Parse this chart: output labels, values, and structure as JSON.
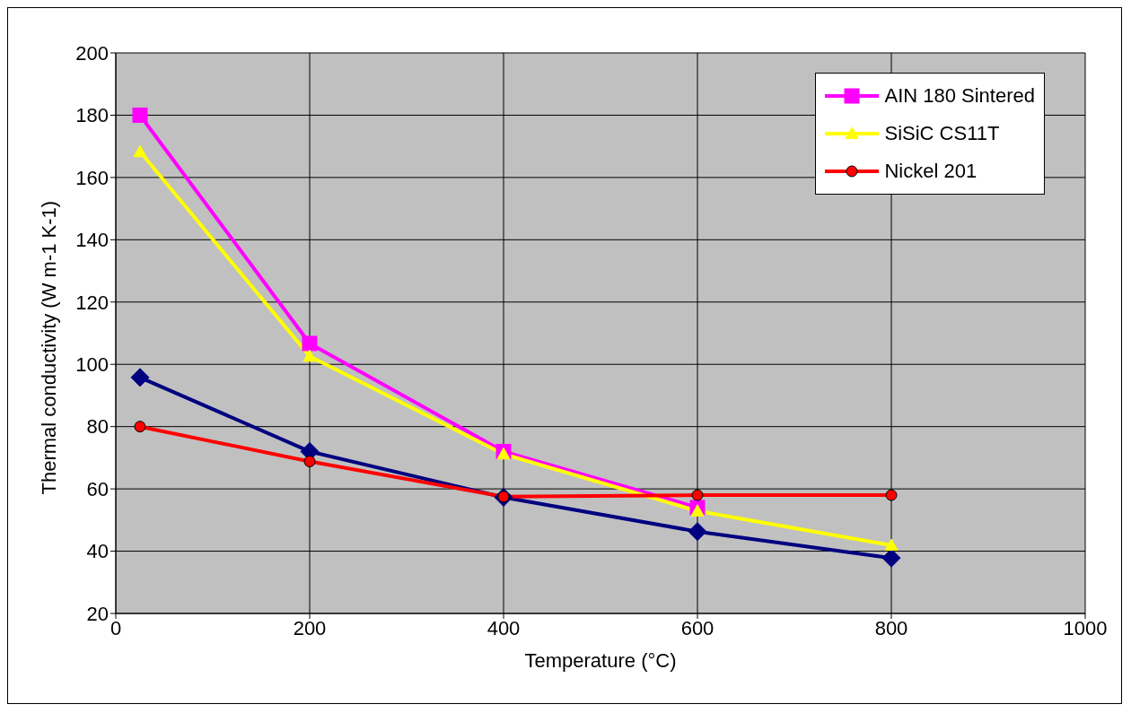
{
  "chart_data": {
    "type": "line",
    "xlabel": "Temperature (°C)",
    "ylabel": "Thermal conductivity (W m-1 K-1)",
    "x": [
      25,
      200,
      400,
      600,
      800
    ],
    "xlim": [
      0,
      1000
    ],
    "xticks": [
      0,
      200,
      400,
      600,
      800,
      1000
    ],
    "ylim": [
      20,
      200
    ],
    "yticks": [
      20,
      40,
      60,
      80,
      100,
      120,
      140,
      160,
      180,
      200
    ],
    "grid": true,
    "legend": "top right",
    "series": [
      {
        "color": "#000080",
        "marker": "diamond",
        "values": [
          95.8,
          72,
          57.3,
          46.3,
          37.8
        ]
      },
      {
        "name": "AIN 180 Sintered",
        "color": "#ff00ff",
        "marker": "square",
        "values": [
          180,
          106.7,
          72,
          54,
          null
        ]
      },
      {
        "name": "SiSiC CS11T",
        "color": "#ffff00",
        "marker": "triangle",
        "values": [
          168.3,
          102.6,
          71.2,
          52.9,
          41.9
        ]
      },
      {
        "name": "Nickel 201",
        "color": "#ff0000",
        "marker": "circle",
        "values": [
          80,
          68.8,
          57.5,
          58,
          58
        ]
      }
    ]
  }
}
